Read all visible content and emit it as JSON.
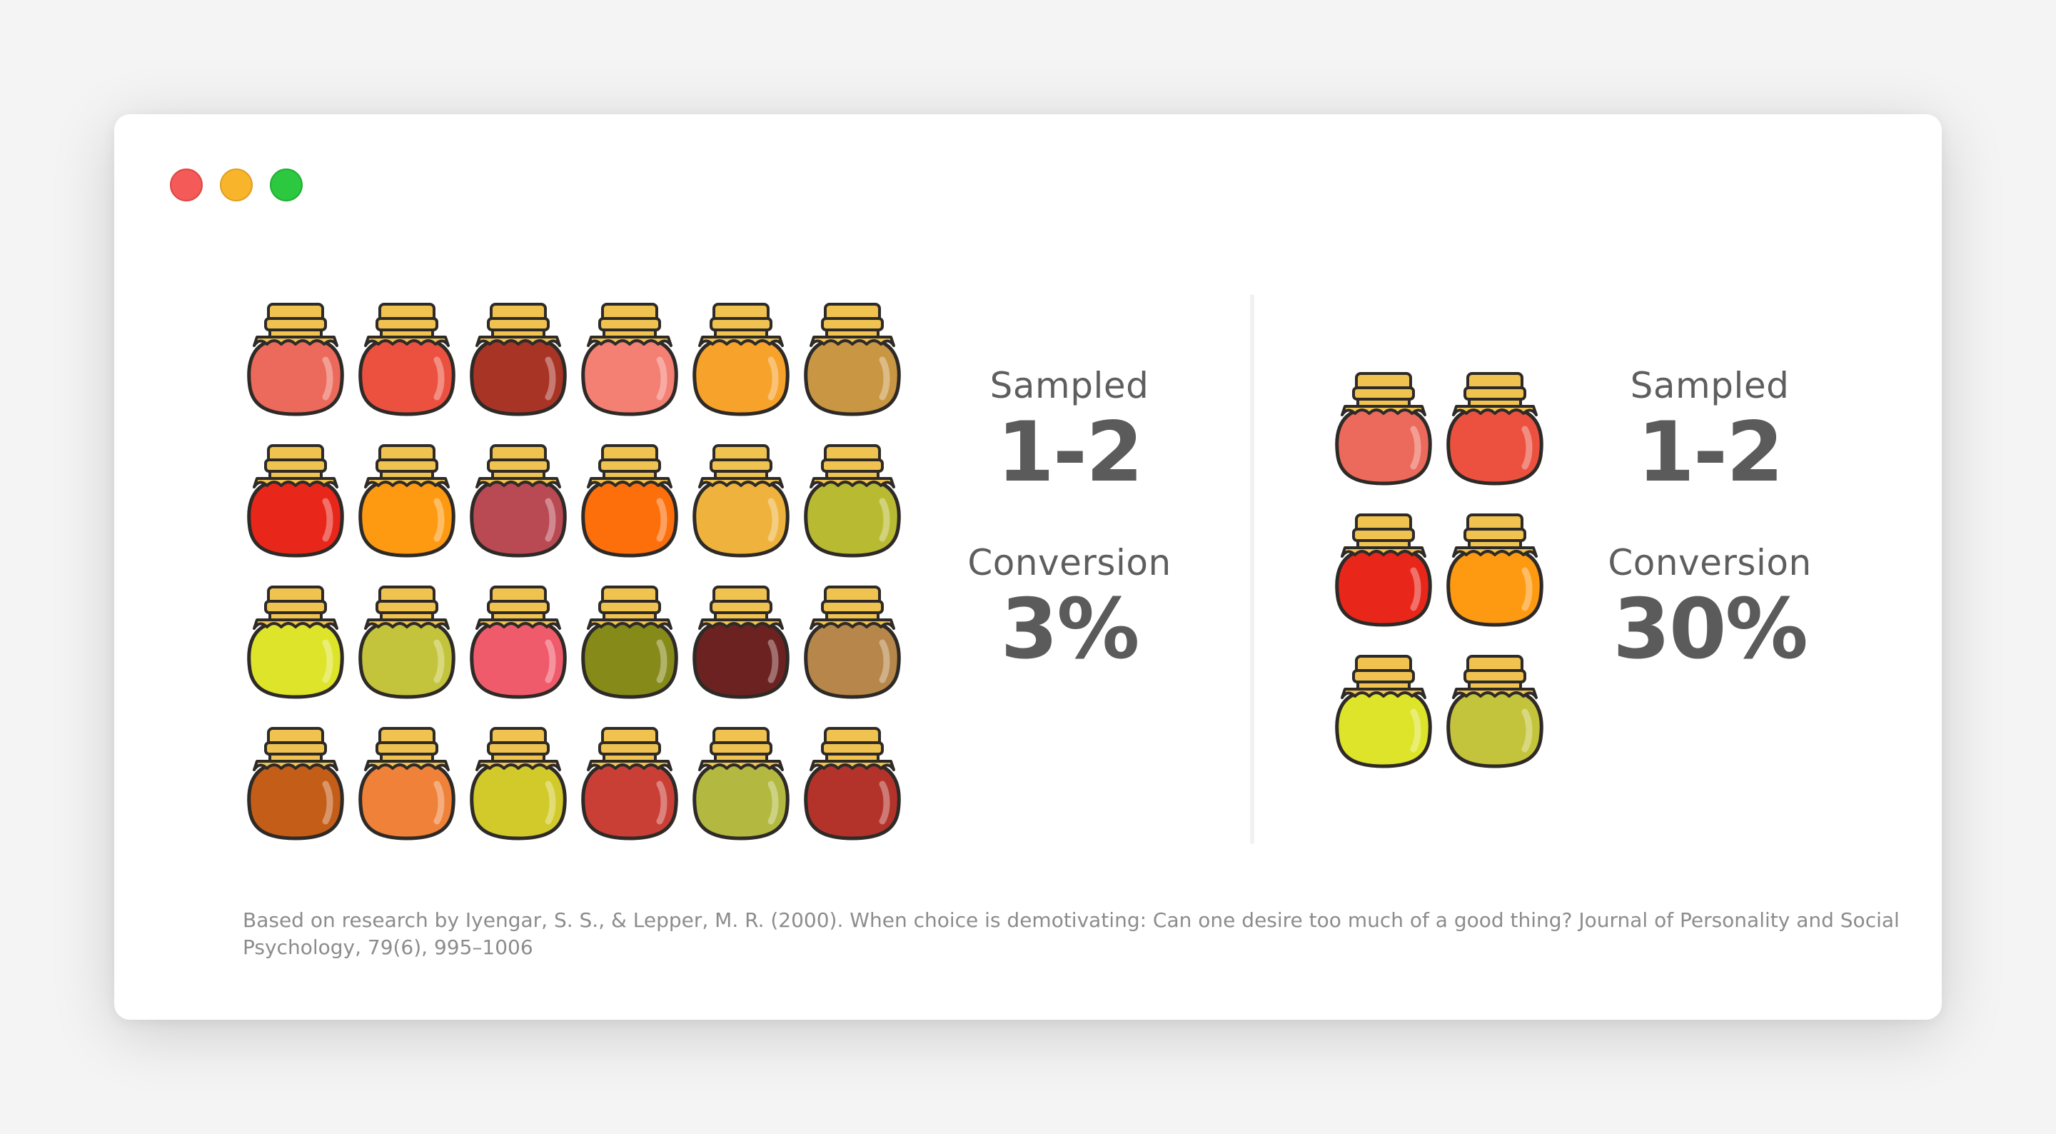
{
  "window": {
    "controls": [
      {
        "name": "close",
        "color": "#f45a57",
        "border": "#dc4643"
      },
      {
        "name": "minimize",
        "color": "#f8b52c",
        "border": "#df9e20"
      },
      {
        "name": "maximize",
        "color": "#2bc840",
        "border": "#1fae33"
      }
    ]
  },
  "jar_colors": {
    "lid": "#f0c350",
    "outline": "#2e2a27"
  },
  "left_panel": {
    "jars": [
      "#eb6a5b",
      "#ec5140",
      "#a83426",
      "#f47f73",
      "#f6a22b",
      "#c99743",
      "#e9261a",
      "#fd9a11",
      "#b94952",
      "#fd6f0b",
      "#efb33d",
      "#b8bb32",
      "#dde42a",
      "#c3c43b",
      "#f05b6c",
      "#868a19",
      "#6c2220",
      "#b7864a",
      "#c45d18",
      "#ef8139",
      "#d2c92a",
      "#c93f36",
      "#b2b840",
      "#b3332b"
    ],
    "sampled_label": "Sampled",
    "sampled_value": "1-2",
    "conversion_label": "Conversion",
    "conversion_value": "3%"
  },
  "right_panel": {
    "jars": [
      "#eb6a5b",
      "#ec5140",
      "#e9261a",
      "#fd9a11",
      "#dde42a",
      "#c3c43b"
    ],
    "sampled_label": "Sampled",
    "sampled_value": "1-2",
    "conversion_label": "Conversion",
    "conversion_value": "30%"
  },
  "citation": "Based on research by Iyengar, S. S., & Lepper, M. R. (2000). When choice is demotivating: Can one desire too much of a good thing? Journal of Personality and Social Psychology, 79(6), 995–1006"
}
